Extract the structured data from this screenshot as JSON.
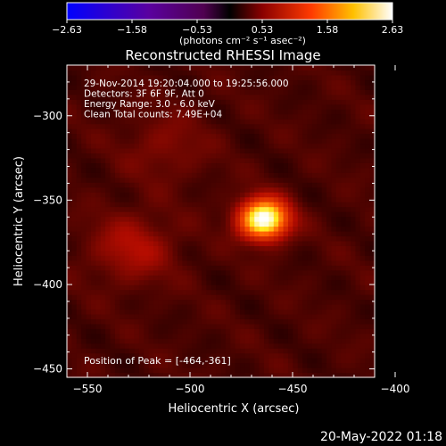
{
  "colorbar": {
    "ticks": [
      "-2.63",
      "-1.58",
      "-0.53",
      "0.53",
      "1.58",
      "2.63"
    ],
    "units": "(photons cm⁻² s⁻¹ asec⁻²)"
  },
  "chart_data": {
    "type": "heatmap",
    "title": "Reconstructed RHESSI Image",
    "xlabel": "Heliocentric X (arcsec)",
    "ylabel": "Heliocentric Y (arcsec)",
    "xlim": [
      -560,
      -410
    ],
    "ylim": [
      -455,
      -270
    ],
    "xticks": [
      -550,
      -500,
      -450,
      -400
    ],
    "yticks": [
      -300,
      -350,
      -400,
      -450
    ],
    "xtick_labels": [
      "−550",
      "−500",
      "−450",
      "−400"
    ],
    "ytick_labels": [
      "−300",
      "−350",
      "−400",
      "−450"
    ],
    "colormap": "red-temperature (black → red → yellow → white)",
    "peak": [
      -464,
      -361
    ],
    "sources": [
      {
        "x": -464,
        "y": -361,
        "relative_intensity": 1.0
      },
      {
        "x": -528,
        "y": -378,
        "relative_intensity": 0.18
      },
      {
        "x": -512,
        "y": -318,
        "relative_intensity": 0.1
      }
    ],
    "annotations": [
      "29-Nov-2014 19:20:04.000 to 19:25:56.000",
      "Detectors: 3F 6F 9F, Att 0",
      "Energy Range: 3.0 - 6.0 keV",
      "Clean    Total counts: 7.49E+04"
    ],
    "peak_label": "Position of Peak = [-464,-361]"
  },
  "footer_date": "20-May-2022 01:18"
}
